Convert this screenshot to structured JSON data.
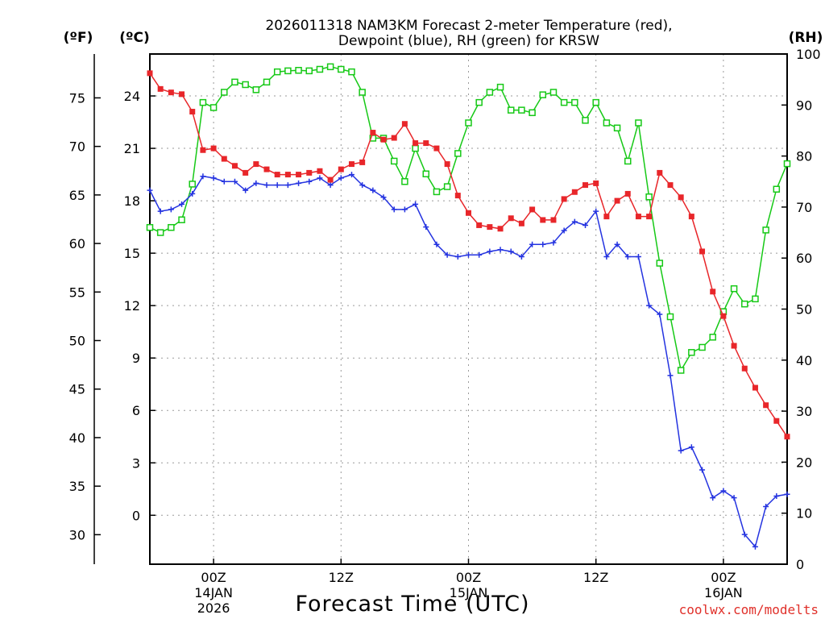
{
  "chart_data": {
    "type": "line",
    "title_line1": "2026011318 NAM3KM Forecast 2-meter Temperature (red),",
    "title_line2": "Dewpoint (blue), RH (green) for KRSW",
    "xlabel": "Forecast Time (UTC)",
    "watermark": "coolwx.com/modelts",
    "axis_unit_f": "(ºF)",
    "axis_unit_c": "(ºC)",
    "axis_unit_rh": "(RH)",
    "x_range_hours": [
      0,
      60
    ],
    "x_ticks": [
      {
        "hour": 6,
        "label": "00Z",
        "sub1": "14JAN",
        "sub2": "2026"
      },
      {
        "hour": 18,
        "label": "12Z",
        "sub1": "",
        "sub2": ""
      },
      {
        "hour": 30,
        "label": "00Z",
        "sub1": "15JAN",
        "sub2": ""
      },
      {
        "hour": 42,
        "label": "12Z",
        "sub1": "",
        "sub2": ""
      },
      {
        "hour": 54,
        "label": "00Z",
        "sub1": "16JAN",
        "sub2": ""
      }
    ],
    "c_axis": {
      "range": [
        -2.8,
        26.4
      ],
      "ticks": [
        0,
        3,
        6,
        9,
        12,
        15,
        18,
        21,
        24
      ]
    },
    "f_axis": {
      "ticks": [
        30,
        35,
        40,
        45,
        50,
        55,
        60,
        65,
        70,
        75
      ]
    },
    "rh_axis": {
      "range": [
        0,
        100
      ],
      "ticks": [
        0,
        10,
        20,
        30,
        40,
        50,
        60,
        70,
        80,
        90,
        100
      ]
    },
    "series": [
      {
        "name": "2-meter Temperature",
        "unit": "°C",
        "color": "#e8262a",
        "marker": "filled-square",
        "x": [
          0,
          1,
          2,
          3,
          4,
          5,
          6,
          7,
          8,
          9,
          10,
          11,
          12,
          13,
          14,
          15,
          16,
          17,
          18,
          19,
          20,
          21,
          22,
          23,
          24,
          25,
          26,
          27,
          28,
          29,
          30,
          31,
          32,
          33,
          34,
          35,
          36,
          37,
          38,
          39,
          40,
          41,
          42,
          43,
          44,
          45,
          46,
          47,
          48,
          49,
          50,
          51,
          52,
          53,
          54,
          55,
          56,
          57,
          58,
          59,
          60
        ],
        "values": [
          25.3,
          24.4,
          24.2,
          24.1,
          23.1,
          20.9,
          21.0,
          20.4,
          20.0,
          19.6,
          20.1,
          19.8,
          19.5,
          19.5,
          19.5,
          19.6,
          19.7,
          19.2,
          19.8,
          20.1,
          20.2,
          21.9,
          21.5,
          21.6,
          22.4,
          21.3,
          21.3,
          21.0,
          20.1,
          18.3,
          17.3,
          16.6,
          16.5,
          16.4,
          17.0,
          16.7,
          17.5,
          16.9,
          16.9,
          18.1,
          18.5,
          18.9,
          19.0,
          17.1,
          18.0,
          18.4,
          17.1,
          17.1,
          19.6,
          18.9,
          18.2,
          17.1,
          15.1,
          12.8,
          11.4,
          9.7,
          8.4,
          7.3,
          6.3,
          5.4,
          4.5
        ]
      },
      {
        "name": "Dewpoint",
        "unit": "°C",
        "color": "#2433e0",
        "marker": "plus",
        "x": [
          0,
          1,
          2,
          3,
          4,
          5,
          6,
          7,
          8,
          9,
          10,
          11,
          12,
          13,
          14,
          15,
          16,
          17,
          18,
          19,
          20,
          21,
          22,
          23,
          24,
          25,
          26,
          27,
          28,
          29,
          30,
          31,
          32,
          33,
          34,
          35,
          36,
          37,
          38,
          39,
          40,
          41,
          42,
          43,
          44,
          45,
          46,
          47,
          48,
          49,
          50,
          51,
          52,
          53,
          54,
          55,
          56,
          57,
          58,
          59,
          60
        ],
        "values": [
          18.6,
          17.4,
          17.5,
          17.8,
          18.4,
          19.4,
          19.3,
          19.1,
          19.1,
          18.6,
          19.0,
          18.9,
          18.9,
          18.9,
          19.0,
          19.1,
          19.3,
          18.9,
          19.3,
          19.5,
          18.9,
          18.6,
          18.2,
          17.5,
          17.5,
          17.8,
          16.5,
          15.5,
          14.9,
          14.8,
          14.9,
          14.9,
          15.1,
          15.2,
          15.1,
          14.8,
          15.5,
          15.5,
          15.6,
          16.3,
          16.8,
          16.6,
          17.4,
          14.8,
          15.5,
          14.8,
          14.8,
          12.0,
          11.5,
          8.0,
          3.7,
          3.9,
          2.6,
          1.0,
          1.4,
          1.0,
          -1.1,
          -1.8,
          0.5,
          1.1,
          1.2
        ]
      },
      {
        "name": "RH",
        "unit": "%",
        "color": "#16c916",
        "marker": "open-square",
        "x": [
          0,
          1,
          2,
          3,
          4,
          5,
          6,
          7,
          8,
          9,
          10,
          11,
          12,
          13,
          14,
          15,
          16,
          17,
          18,
          19,
          20,
          21,
          22,
          23,
          24,
          25,
          26,
          27,
          28,
          29,
          30,
          31,
          32,
          33,
          34,
          35,
          36,
          37,
          38,
          39,
          40,
          41,
          42,
          43,
          44,
          45,
          46,
          47,
          48,
          49,
          50,
          51,
          52,
          53,
          54,
          55,
          56,
          57,
          58,
          59,
          60
        ],
        "values": [
          66,
          65,
          66,
          67.5,
          74.5,
          90.5,
          89.5,
          92.5,
          94.5,
          94,
          93,
          94.5,
          96.5,
          96.7,
          96.8,
          96.7,
          97,
          97.5,
          97,
          96.5,
          92.5,
          83.5,
          83.5,
          79,
          75,
          81.5,
          76.5,
          73,
          74,
          80.5,
          86.5,
          90.5,
          92.5,
          93.5,
          89,
          89,
          88.5,
          92,
          92.5,
          90.5,
          90.5,
          87,
          90.5,
          86.5,
          85.5,
          79,
          86.5,
          72,
          59,
          48.5,
          38,
          41.5,
          42.5,
          44.5,
          49.5,
          54,
          51,
          52,
          65.5,
          73.5,
          78.5
        ]
      }
    ]
  }
}
